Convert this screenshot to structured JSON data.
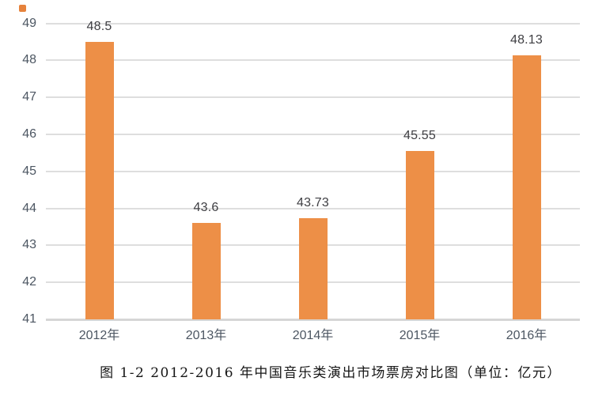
{
  "chart_data": {
    "type": "bar",
    "categories": [
      "2012年",
      "2013年",
      "2014年",
      "2015年",
      "2016年"
    ],
    "values": [
      48.5,
      43.6,
      43.73,
      45.55,
      48.13
    ],
    "value_labels": [
      "48.5",
      "43.6",
      "43.73",
      "45.55",
      "48.13"
    ],
    "series_name": "中国音乐类演出市场票房",
    "title": "",
    "caption": "图 1-2 2012-2016 年中国音乐类演出市场票房对比图（单位：亿元）",
    "unit": "亿元",
    "xlabel": "",
    "ylabel": "",
    "ylim": [
      41,
      49
    ],
    "yticks": [
      "49",
      "48",
      "47",
      "46",
      "45",
      "44",
      "43",
      "42",
      "41"
    ],
    "grid": true,
    "legend": false,
    "bar_color": "#ed8f47",
    "gridline_color": "#dedede",
    "axis_label_color": "#4c5662",
    "value_label_color": "#3e3e42"
  }
}
